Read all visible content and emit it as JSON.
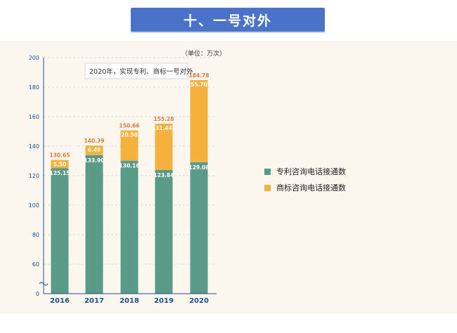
{
  "header": {
    "title": "十、一号对外"
  },
  "colors": {
    "green": "#5a9b87",
    "orange": "#f4b23c",
    "label_orange": "#e07a3a",
    "axis_blue": "#1f4f8f"
  },
  "chart_data": {
    "type": "bar",
    "stacked": true,
    "unit_note": "（单位：万次）",
    "annotation": "2020年，实现专利、商标一号对外",
    "categories": [
      "2016",
      "2017",
      "2018",
      "2019",
      "2020"
    ],
    "series": [
      {
        "name": "专利咨询电话接通数",
        "values": [
          125.15,
          133.9,
          130.16,
          123.84,
          129.08
        ],
        "labels": [
          "125.15",
          "133.90",
          "130.16",
          "123.84",
          "129.08"
        ]
      },
      {
        "name": "商标咨询电话接通数",
        "values": [
          5.5,
          6.49,
          20.5,
          31.44,
          55.7
        ],
        "labels": [
          "5.50",
          "6.49",
          "20.50",
          "31.44",
          "55.70"
        ]
      }
    ],
    "totals": [
      "130.65",
      "140.39",
      "150.66",
      "155.28",
      "184.78"
    ],
    "yticks": [
      "0",
      "60",
      "80",
      "100",
      "120",
      "140",
      "160",
      "180",
      "200"
    ],
    "ytick_values": [
      0,
      60,
      80,
      100,
      120,
      140,
      160,
      180,
      200
    ],
    "ylim": [
      0,
      200
    ],
    "axis_break": true
  },
  "legend": [
    {
      "label": "专利咨询电话接通数",
      "color": "#5a9b87"
    },
    {
      "label": "商标咨询电话接通数",
      "color": "#f4b23c"
    }
  ]
}
